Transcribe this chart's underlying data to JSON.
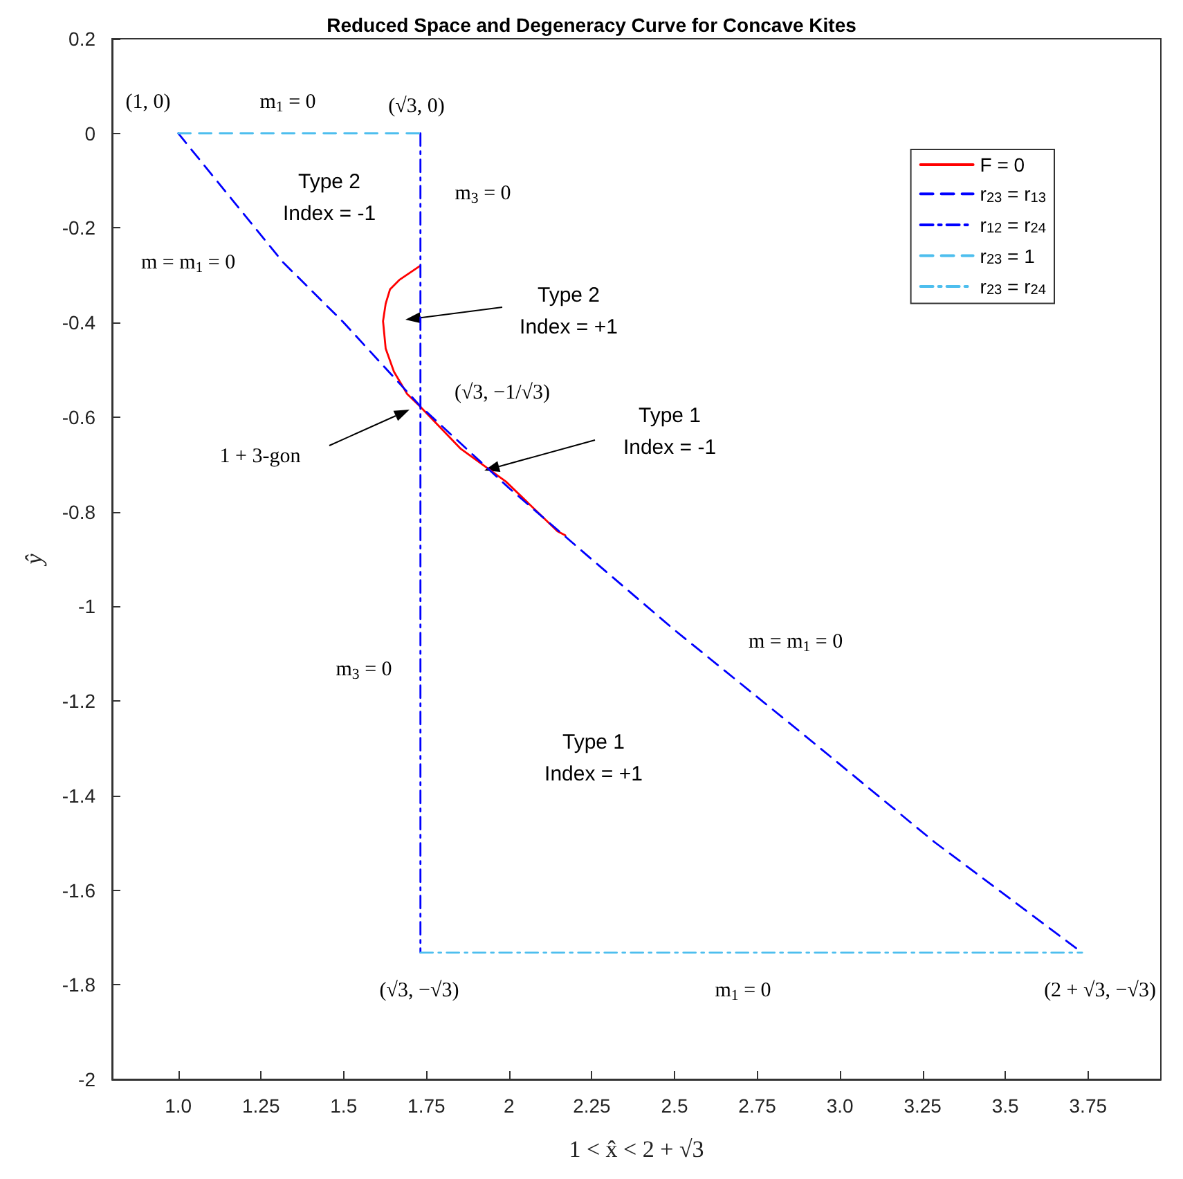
{
  "chart_data": {
    "type": "line",
    "title": "Reduced Space and Degeneracy Curve for Concave Kites",
    "xlabel": "1 < x̂ < 2 + √3",
    "ylabel": "ŷ",
    "xlim": [
      0.8,
      3.97
    ],
    "ylim": [
      -2,
      0.2
    ],
    "xticks": [
      {
        "value": 1,
        "label": "1.0"
      },
      1.25,
      1.5,
      1.75,
      2,
      2.25,
      2.5,
      2.75,
      {
        "value": 3,
        "label": "3.0"
      },
      3.25,
      3.5,
      3.75
    ],
    "yticks": [
      0.2,
      0,
      -0.2,
      -0.4,
      -0.6,
      -0.8,
      -1,
      -1.2,
      -1.4,
      -1.6,
      -1.8,
      -2
    ],
    "grid": false,
    "legend": "top right",
    "marker": "none",
    "series": [
      {
        "name": "F = 0",
        "color": "#ff0000",
        "line_style": "solid",
        "x": [
          1.729,
          1.668,
          1.64,
          1.627,
          1.619,
          1.627,
          1.652,
          1.692,
          1.729,
          1.854,
          1.99,
          2.146,
          2.17
        ],
        "values": [
          -0.281,
          -0.31,
          -0.33,
          -0.36,
          -0.397,
          -0.455,
          -0.504,
          -0.551,
          -0.576,
          -0.667,
          -0.736,
          -0.841,
          -0.85
        ]
      },
      {
        "name": "r$_{23}$ = r$_{13}$",
        "color": "#0000ff",
        "line_style": "dashed",
        "x": [
          1,
          1.316,
          1.5,
          1.732,
          2,
          2.247,
          2.5,
          2.883,
          3.287,
          3.732
        ],
        "values": [
          0,
          -0.272,
          -0.4,
          -0.577,
          -0.75,
          -0.899,
          -1.05,
          -1.267,
          -1.499,
          -1.732
        ]
      },
      {
        "name": "r$_{12}$ = r$_{24}$",
        "color": "#0000ff",
        "line_style": "dashdot",
        "x": [
          1.732,
          1.732
        ],
        "values": [
          0,
          -1.732
        ]
      },
      {
        "name": "r$_{23}$ = 1",
        "color": "#4dbeee",
        "line_style": "dashed",
        "x": [
          1,
          1.732
        ],
        "values": [
          0,
          0
        ]
      },
      {
        "name": "r$_{23}$ = r$_{24}$",
        "color": "#4dbeee",
        "line_style": "dashdot",
        "x": [
          1.732,
          3.732
        ],
        "values": [
          -1.732,
          -1.732
        ]
      }
    ],
    "annotations": [
      "(1, 0)",
      "m$_{1}$ = 0",
      "(√3, 0)",
      "Type 2\nIndex = -1",
      "m$_{3}$ = 0",
      "m = m$_{1}$ = 0",
      "Type 2\nIndex = +1",
      "(√3, −1/√3)",
      "Type 1\nIndex = -1",
      "1 + 3-gon",
      "m = m$_{1}$ = 0",
      "m$_{3}$ = 0",
      "Type 1\nIndex = +1",
      "(√3, −√3)",
      "m$_{1}$ = 0",
      "(2 + √3, −√3)"
    ]
  }
}
